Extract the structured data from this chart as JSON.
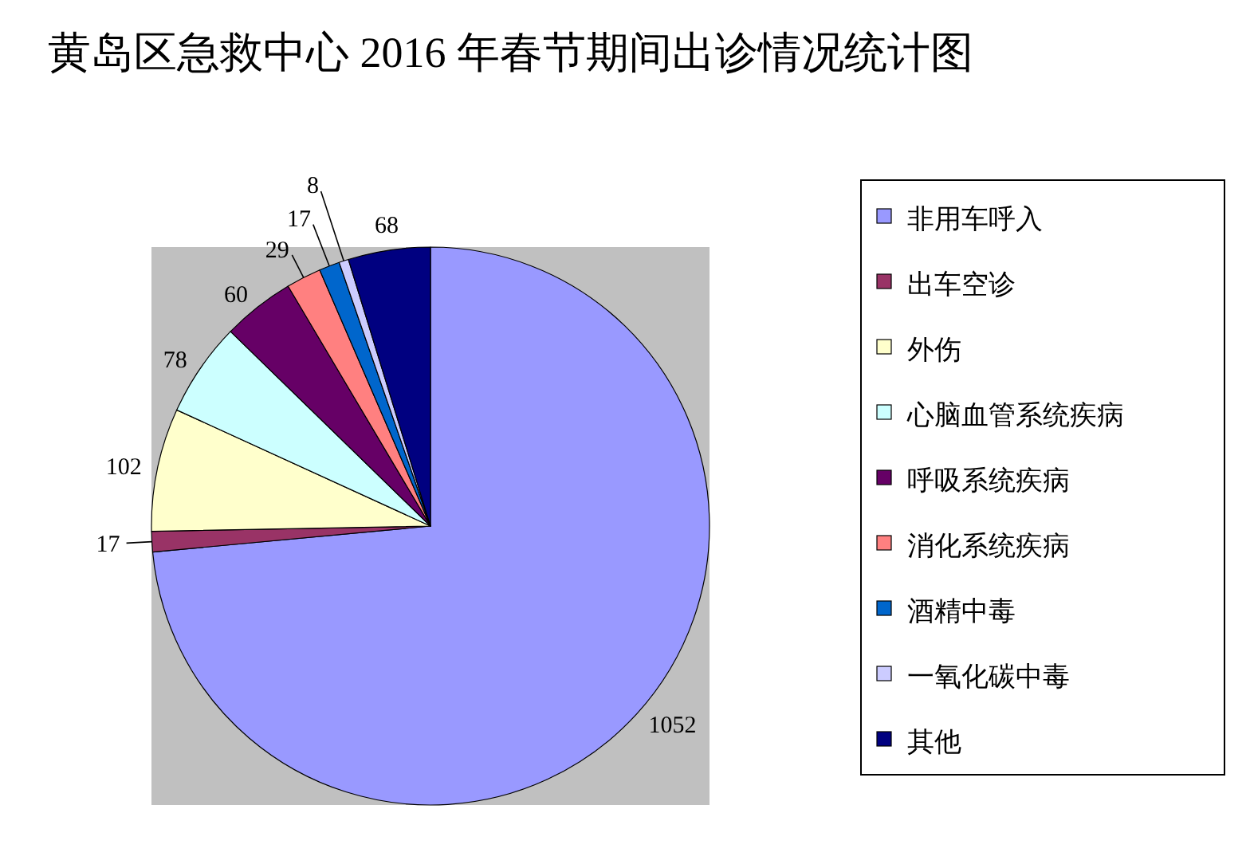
{
  "chart_data": {
    "type": "pie",
    "title": "黄岛区急救中心 2016 年春节期间出诊情况统计图",
    "categories": [
      "非用车呼入",
      "出车空诊",
      "外伤",
      "心脑血管系统疾病",
      "呼吸系统疾病",
      "消化系统疾病",
      "酒精中毒",
      "一氧化碳中毒",
      "其他"
    ],
    "values": [
      1052,
      17,
      102,
      78,
      60,
      29,
      17,
      8,
      68
    ],
    "colors": [
      "#9999ff",
      "#993366",
      "#ffffcc",
      "#ccffff",
      "#660066",
      "#ff8080",
      "#0066cc",
      "#ccccff",
      "#000080"
    ],
    "data_labels": true,
    "legend": "right"
  }
}
